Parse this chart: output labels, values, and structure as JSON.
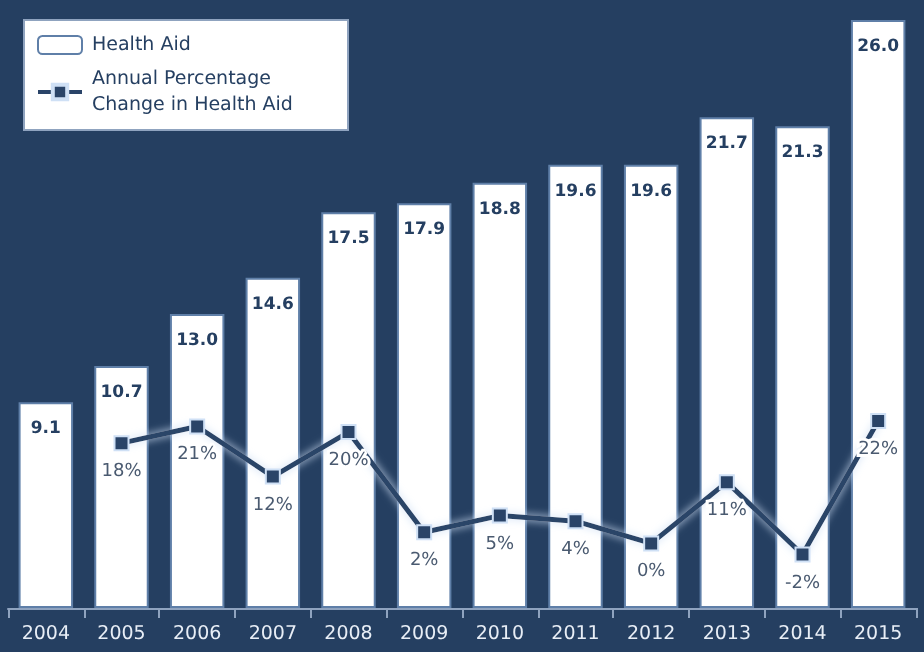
{
  "chart_data": {
    "type": "bar",
    "categories": [
      "2004",
      "2005",
      "2006",
      "2007",
      "2008",
      "2009",
      "2010",
      "2011",
      "2012",
      "2013",
      "2014",
      "2015"
    ],
    "series": [
      {
        "name": "Health Aid",
        "color": "#ffffff",
        "values": [
          9.1,
          10.7,
          13.0,
          14.6,
          17.5,
          17.9,
          18.8,
          19.6,
          19.6,
          21.7,
          21.3,
          26.0
        ],
        "value_labels": [
          "9.1",
          "10.7",
          "13.0",
          "14.6",
          "17.5",
          "17.9",
          "18.8",
          "19.6",
          "19.6",
          "21.7",
          "21.3",
          "26.0"
        ]
      },
      {
        "name": "Annual Percentage Change in Health Aid",
        "type": "line",
        "axis": "y2",
        "color": "#2a4468",
        "values": [
          null,
          18,
          21,
          12,
          20,
          2,
          5,
          4,
          0,
          11,
          -2,
          22
        ],
        "value_labels": [
          null,
          "18%",
          "21%",
          "12%",
          "20%",
          "2%",
          "5%",
          "4%",
          "0%",
          "11%",
          "-2%",
          "22%"
        ]
      }
    ],
    "tick_labels": "x",
    "marker": "square",
    "line_style": "solid",
    "legend": "top left",
    "grid": false
  }
}
